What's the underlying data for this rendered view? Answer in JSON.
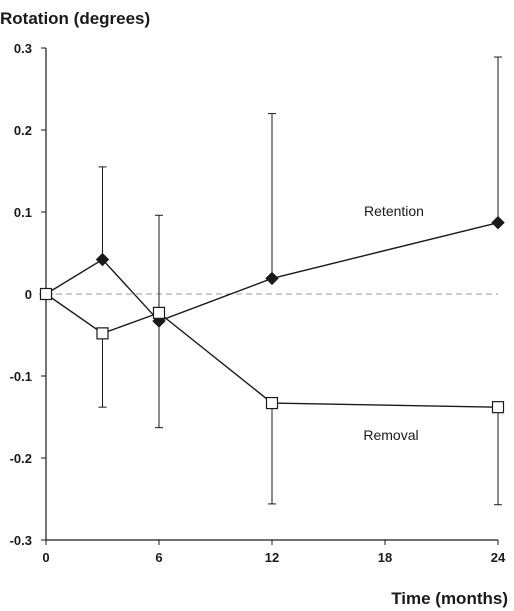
{
  "chart_data": {
    "type": "line",
    "title": "",
    "ylabel": "Rotation (degrees)",
    "xlabel": "Time (months)",
    "xlim": [
      0,
      24
    ],
    "ylim": [
      -0.3,
      0.3
    ],
    "x_ticks": [
      0,
      6,
      12,
      18,
      24
    ],
    "y_ticks": [
      0.3,
      0.2,
      0.1,
      0,
      -0.1,
      -0.2,
      -0.3
    ],
    "y_tick_labels": [
      "0.3",
      "0.2",
      "0.1",
      "0",
      "-0.1",
      "-0.2",
      "-0.3"
    ],
    "reference_line": {
      "y": 0,
      "style": "dashed"
    },
    "grid": false,
    "series": [
      {
        "name": "Retention",
        "marker": "filled-diamond",
        "x": [
          0,
          3,
          6,
          12,
          24
        ],
        "y": [
          0,
          0.042,
          -0.033,
          0.019,
          0.087
        ],
        "error_upper": [
          null,
          0.155,
          0.096,
          0.22,
          0.289
        ],
        "error_lower": [
          null,
          null,
          null,
          null,
          null
        ]
      },
      {
        "name": "Removal",
        "marker": "open-square",
        "x": [
          0,
          3,
          6,
          12,
          24
        ],
        "y": [
          0,
          -0.048,
          -0.023,
          -0.133,
          -0.138
        ],
        "error_upper": [
          null,
          null,
          null,
          null,
          null
        ],
        "error_lower": [
          null,
          -0.138,
          -0.163,
          -0.256,
          -0.257
        ]
      }
    ]
  },
  "colors": {
    "line": "#1a1a1a",
    "reference_line": "#999999",
    "background": "#ffffff"
  }
}
